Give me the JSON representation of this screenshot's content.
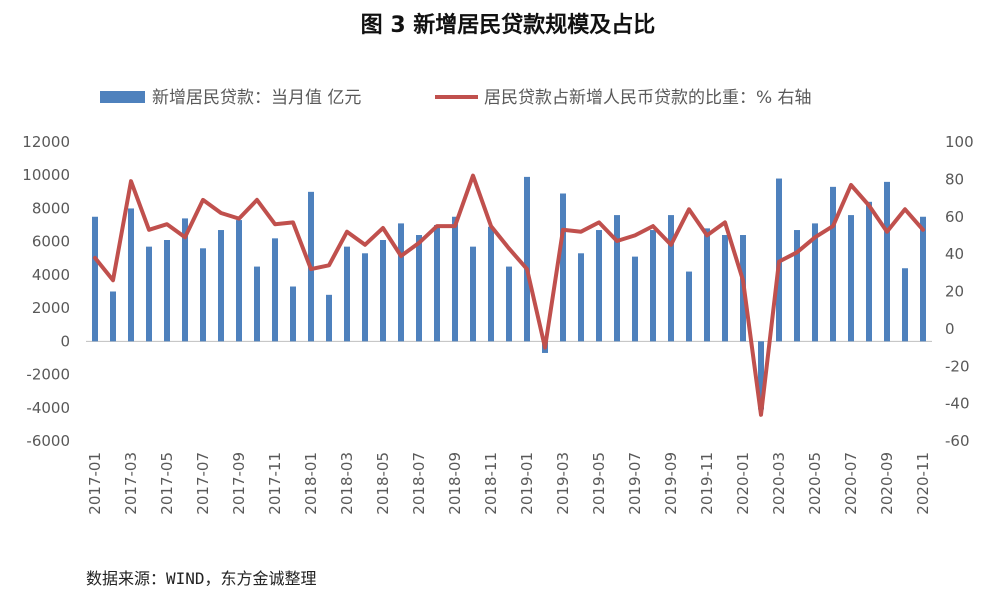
{
  "chart_data": {
    "type": "bar+line",
    "title": "图 3 新增居民贷款规模及占比",
    "source": "数据来源：WIND，东方金诚整理",
    "legend": {
      "bar_label": "新增居民贷款：当月值 亿元",
      "line_label": "居民贷款占新增人民币贷款的比重：% 右轴",
      "position": "top"
    },
    "colors": {
      "bar": "#4e81bd",
      "line": "#c0504d",
      "axis": "#bfbfbf"
    },
    "y_left": {
      "min": -6000,
      "max": 12000,
      "ticks": [
        -6000,
        -4000,
        -2000,
        0,
        2000,
        4000,
        6000,
        8000,
        10000,
        12000
      ]
    },
    "y_right": {
      "min": -60,
      "max": 100,
      "ticks": [
        -60,
        -40,
        -20,
        0,
        20,
        40,
        60,
        80,
        100
      ]
    },
    "grid": false,
    "categories": [
      "2017-01",
      "2017-02",
      "2017-03",
      "2017-04",
      "2017-05",
      "2017-06",
      "2017-07",
      "2017-08",
      "2017-09",
      "2017-10",
      "2017-11",
      "2017-12",
      "2018-01",
      "2018-02",
      "2018-03",
      "2018-04",
      "2018-05",
      "2018-06",
      "2018-07",
      "2018-08",
      "2018-09",
      "2018-10",
      "2018-11",
      "2018-12",
      "2019-01",
      "2019-02",
      "2019-03",
      "2019-04",
      "2019-05",
      "2019-06",
      "2019-07",
      "2019-08",
      "2019-09",
      "2019-10",
      "2019-11",
      "2019-12",
      "2020-01",
      "2020-02",
      "2020-03",
      "2020-04",
      "2020-05",
      "2020-06",
      "2020-07",
      "2020-08",
      "2020-09",
      "2020-10",
      "2020-11"
    ],
    "x_tick_labels": [
      "2017-01",
      "2017-03",
      "2017-05",
      "2017-07",
      "2017-09",
      "2017-11",
      "2018-01",
      "2018-03",
      "2018-05",
      "2018-07",
      "2018-09",
      "2018-11",
      "2019-01",
      "2019-03",
      "2019-05",
      "2019-07",
      "2019-09",
      "2019-11",
      "2020-01",
      "2020-03",
      "2020-05",
      "2020-07",
      "2020-09",
      "2020-11"
    ],
    "series": [
      {
        "name": "新增居民贷款：当月值 亿元",
        "type": "bar",
        "axis": "left",
        "values": [
          7500,
          3000,
          8000,
          5700,
          6100,
          7400,
          5600,
          6700,
          7300,
          4500,
          6200,
          3300,
          9000,
          2800,
          5700,
          5300,
          6100,
          7100,
          6400,
          7000,
          7500,
          5700,
          6900,
          4500,
          9900,
          -700,
          8900,
          5300,
          6700,
          7600,
          5100,
          6700,
          7600,
          4200,
          6800,
          6400,
          6400,
          -4100,
          9800,
          6700,
          7100,
          9300,
          7600,
          8400,
          9600,
          4400,
          7500
        ]
      },
      {
        "name": "居民贷款占新增人民币贷款的比重：% 右轴",
        "type": "line",
        "axis": "right",
        "values": [
          38,
          26,
          79,
          53,
          56,
          49,
          69,
          62,
          59,
          69,
          56,
          57,
          32,
          34,
          52,
          45,
          54,
          39,
          46,
          55,
          55,
          82,
          55,
          43,
          32,
          -10,
          53,
          52,
          57,
          47,
          50,
          55,
          45,
          64,
          50,
          57,
          26,
          -46,
          36,
          41,
          49,
          55,
          77,
          66,
          52,
          64,
          53
        ]
      }
    ]
  }
}
